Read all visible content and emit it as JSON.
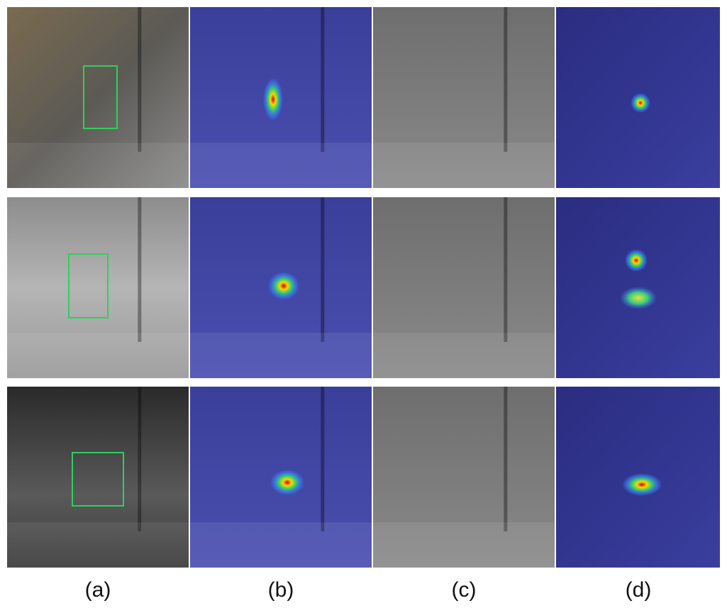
{
  "labels": [
    "(a)",
    "(b)",
    "(c)",
    "(d)"
  ]
}
